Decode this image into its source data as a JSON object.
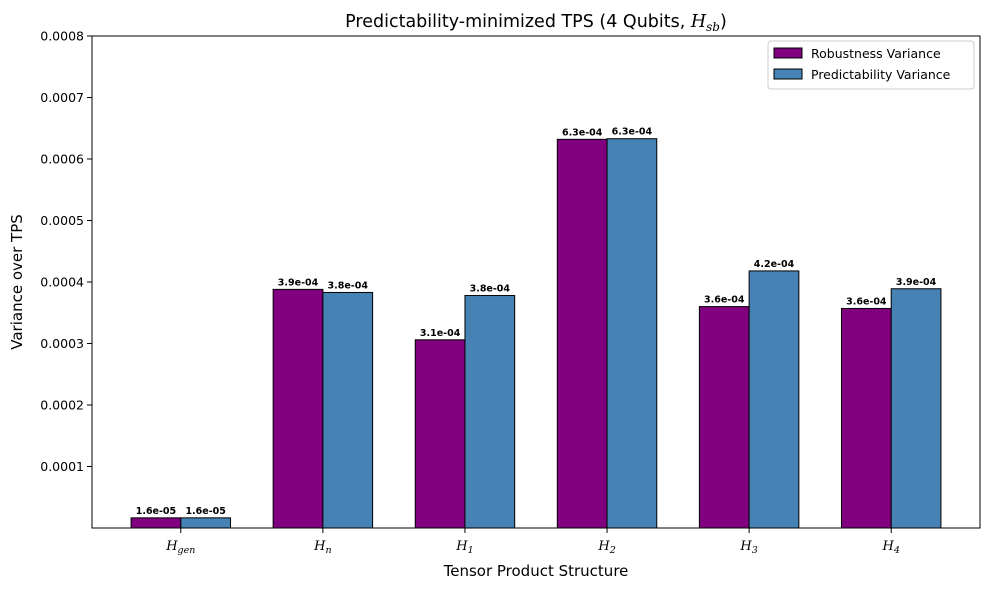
{
  "chart_data": {
    "type": "bar",
    "title": "Predictability-minimized TPS (4 Qubits, H_sb)",
    "title_parts": {
      "prefix": "Predictability-minimized TPS (4 Qubits, ",
      "math_main": "H",
      "math_sub": "sb",
      "suffix": ")"
    },
    "xlabel": "Tensor Product Structure",
    "ylabel": "Variance over TPS",
    "categories": [
      "H_gen",
      "H_n",
      "H_1",
      "H_2",
      "H_3",
      "H_4"
    ],
    "category_parts": [
      {
        "main": "H",
        "sub": "gen"
      },
      {
        "main": "H",
        "sub": "n"
      },
      {
        "main": "H",
        "sub": "1"
      },
      {
        "main": "H",
        "sub": "2"
      },
      {
        "main": "H",
        "sub": "3"
      },
      {
        "main": "H",
        "sub": "4"
      }
    ],
    "series": [
      {
        "name": "Robustness Variance",
        "color": "#800080",
        "values": [
          1.65e-05,
          0.000388,
          0.000306,
          0.000632,
          0.00036,
          0.000357
        ],
        "labels": [
          "1.6e-05",
          "3.9e-04",
          "3.1e-04",
          "6.3e-04",
          "3.6e-04",
          "3.6e-04"
        ]
      },
      {
        "name": "Predictability Variance",
        "color": "#4682b4",
        "values": [
          1.65e-05,
          0.000383,
          0.000378,
          0.000633,
          0.000418,
          0.000389
        ],
        "labels": [
          "1.6e-05",
          "3.8e-04",
          "3.8e-04",
          "6.3e-04",
          "4.2e-04",
          "3.9e-04"
        ]
      }
    ],
    "ylim": [
      0,
      0.0008
    ],
    "yticks": [
      "0.0001",
      "0.0002",
      "0.0003",
      "0.0004",
      "0.0005",
      "0.0006",
      "0.0007",
      "0.0008"
    ],
    "ytick_values": [
      0.0001,
      0.0002,
      0.0003,
      0.0004,
      0.0005,
      0.0006,
      0.0007,
      0.0008
    ],
    "grid": false,
    "legend_position": "top-right",
    "edge_color": "#000000"
  }
}
